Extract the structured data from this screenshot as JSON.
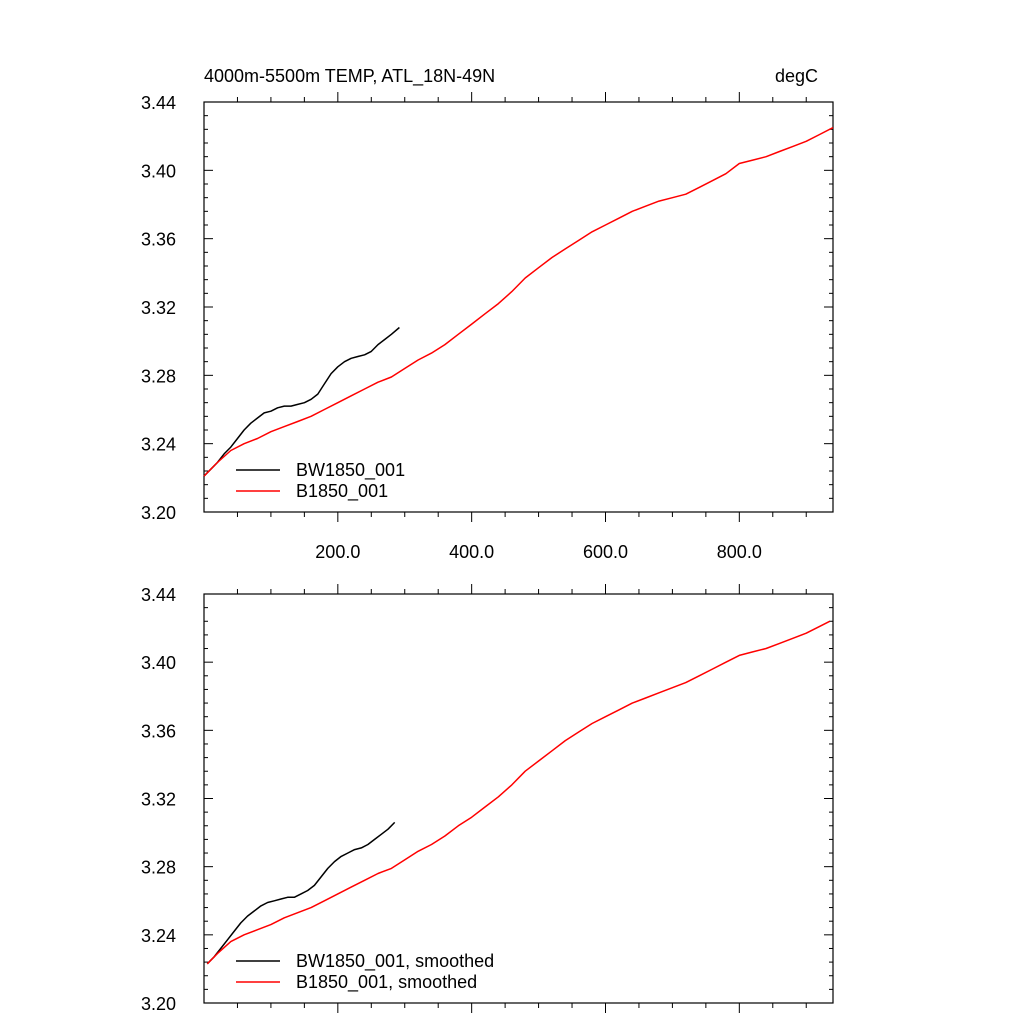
{
  "chart_data": [
    {
      "type": "line",
      "title": "4000m-5500m TEMP, ATL_18N-49N",
      "units": "degC",
      "xlim": [
        0,
        940
      ],
      "ylim": [
        3.2,
        3.44
      ],
      "xticks": [
        200,
        400,
        600,
        800
      ],
      "xtick_labels": [
        "200.0",
        "400.0",
        "600.0",
        "800.0"
      ],
      "yticks": [
        3.2,
        3.24,
        3.28,
        3.32,
        3.36,
        3.4,
        3.44
      ],
      "ytick_labels": [
        "3.20",
        "3.24",
        "3.28",
        "3.32",
        "3.36",
        "3.40",
        "3.44"
      ],
      "legend_position": "bottom-left",
      "series": [
        {
          "name": "BW1850_001",
          "color": "#000000",
          "x": [
            0,
            10,
            20,
            30,
            40,
            50,
            60,
            70,
            80,
            90,
            100,
            110,
            120,
            130,
            140,
            150,
            160,
            170,
            180,
            190,
            200,
            210,
            220,
            230,
            240,
            250,
            260,
            270,
            280,
            292
          ],
          "y": [
            3.221,
            3.225,
            3.229,
            3.234,
            3.238,
            3.243,
            3.248,
            3.252,
            3.255,
            3.258,
            3.259,
            3.261,
            3.262,
            3.262,
            3.263,
            3.264,
            3.266,
            3.269,
            3.275,
            3.281,
            3.285,
            3.288,
            3.29,
            3.291,
            3.292,
            3.294,
            3.298,
            3.301,
            3.304,
            3.308
          ]
        },
        {
          "name": "B1850_001",
          "color": "#ff0000",
          "x": [
            0,
            20,
            40,
            60,
            80,
            100,
            120,
            140,
            160,
            180,
            200,
            220,
            240,
            260,
            280,
            300,
            320,
            340,
            360,
            380,
            400,
            420,
            440,
            460,
            480,
            500,
            520,
            540,
            560,
            580,
            600,
            620,
            640,
            660,
            680,
            700,
            720,
            740,
            760,
            780,
            800,
            820,
            840,
            860,
            880,
            900,
            920,
            940
          ],
          "y": [
            3.221,
            3.229,
            3.236,
            3.24,
            3.243,
            3.247,
            3.25,
            3.253,
            3.256,
            3.26,
            3.264,
            3.268,
            3.272,
            3.276,
            3.279,
            3.284,
            3.289,
            3.293,
            3.298,
            3.304,
            3.31,
            3.316,
            3.322,
            3.329,
            3.337,
            3.343,
            3.349,
            3.354,
            3.359,
            3.364,
            3.368,
            3.372,
            3.376,
            3.379,
            3.382,
            3.384,
            3.386,
            3.39,
            3.394,
            3.398,
            3.404,
            3.406,
            3.408,
            3.411,
            3.414,
            3.417,
            3.421,
            3.425
          ]
        }
      ]
    },
    {
      "type": "line",
      "xlim": [
        0,
        940
      ],
      "ylim": [
        3.2,
        3.44
      ],
      "yticks": [
        3.2,
        3.24,
        3.28,
        3.32,
        3.36,
        3.4,
        3.44
      ],
      "ytick_labels": [
        "3.20",
        "3.24",
        "3.28",
        "3.32",
        "3.36",
        "3.40",
        "3.44"
      ],
      "legend_position": "bottom-left",
      "series": [
        {
          "name": "BW1850_001, smoothed",
          "color": "#000000",
          "x": [
            5,
            15,
            25,
            35,
            45,
            55,
            65,
            75,
            85,
            95,
            105,
            115,
            125,
            135,
            145,
            155,
            165,
            175,
            185,
            195,
            205,
            215,
            225,
            235,
            245,
            255,
            265,
            275,
            285
          ],
          "y": [
            3.223,
            3.227,
            3.232,
            3.237,
            3.242,
            3.247,
            3.251,
            3.254,
            3.257,
            3.259,
            3.26,
            3.261,
            3.262,
            3.262,
            3.264,
            3.266,
            3.269,
            3.274,
            3.279,
            3.283,
            3.286,
            3.288,
            3.29,
            3.291,
            3.293,
            3.296,
            3.299,
            3.302,
            3.306
          ]
        },
        {
          "name": "B1850_001, smoothed",
          "color": "#ff0000",
          "x": [
            5,
            20,
            40,
            60,
            80,
            100,
            120,
            140,
            160,
            180,
            200,
            220,
            240,
            260,
            280,
            300,
            320,
            340,
            360,
            380,
            400,
            420,
            440,
            460,
            480,
            500,
            520,
            540,
            560,
            580,
            600,
            620,
            640,
            660,
            680,
            700,
            720,
            740,
            760,
            780,
            800,
            820,
            840,
            860,
            880,
            900,
            920,
            935
          ],
          "y": [
            3.223,
            3.229,
            3.236,
            3.24,
            3.243,
            3.246,
            3.25,
            3.253,
            3.256,
            3.26,
            3.264,
            3.268,
            3.272,
            3.276,
            3.279,
            3.284,
            3.289,
            3.293,
            3.298,
            3.304,
            3.309,
            3.315,
            3.321,
            3.328,
            3.336,
            3.342,
            3.348,
            3.354,
            3.359,
            3.364,
            3.368,
            3.372,
            3.376,
            3.379,
            3.382,
            3.385,
            3.388,
            3.392,
            3.396,
            3.4,
            3.404,
            3.406,
            3.408,
            3.411,
            3.414,
            3.417,
            3.421,
            3.424
          ]
        }
      ]
    }
  ]
}
